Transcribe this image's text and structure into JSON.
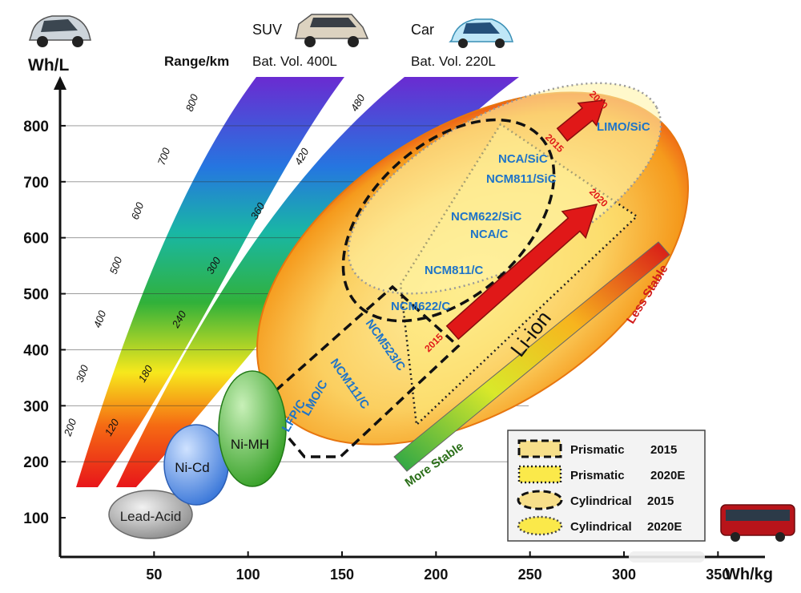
{
  "chart_data": {
    "type": "scatter",
    "title": "",
    "xlabel": "Wh/kg",
    "ylabel": "Wh/L",
    "xlim": [
      0,
      375
    ],
    "ylim": [
      30,
      870
    ],
    "x_ticks": [
      50,
      100,
      150,
      200,
      250,
      300,
      350
    ],
    "y_ticks": [
      100,
      200,
      300,
      400,
      500,
      600,
      700,
      800
    ],
    "regions": [
      {
        "name": "Lead-Acid",
        "cx": 52,
        "cy": 65,
        "rx": 28,
        "ry": 28,
        "color": "#9a9a9a"
      },
      {
        "name": "Ni-Cd",
        "cx": 52,
        "cy": 145,
        "rx": 18,
        "ry": 65,
        "color": "#3b7fe0"
      },
      {
        "name": "Ni-MH",
        "cx": 97,
        "cy": 215,
        "rx": 22,
        "ry": 100,
        "color": "#2fa024"
      },
      {
        "name": "Li-ion",
        "color": "#f39a1a"
      }
    ],
    "chemistries": [
      {
        "label": "LFP/C",
        "x": 117,
        "y": 215
      },
      {
        "label": "LMO/C",
        "x": 127,
        "y": 265
      },
      {
        "label": "NCM111/C",
        "x": 140,
        "y": 320
      },
      {
        "label": "NCM523/C",
        "x": 165,
        "y": 380
      },
      {
        "label": "NCM622/C",
        "x": 187,
        "y": 435
      },
      {
        "label": "NCM811/C",
        "x": 200,
        "y": 500
      },
      {
        "label": "NCA/C",
        "x": 220,
        "y": 570
      },
      {
        "label": "NCM622/SiC",
        "x": 222,
        "y": 600
      },
      {
        "label": "NCM811/SiC",
        "x": 237,
        "y": 665
      },
      {
        "label": "NCA/SiC",
        "x": 235,
        "y": 700
      },
      {
        "label": "LIMO/SiC",
        "x": 310,
        "y": 760
      }
    ],
    "arrows": [
      {
        "from": [
          262,
          420
        ],
        "to": [
          299,
          628
        ],
        "start_label": "2015",
        "end_label": "2020"
      },
      {
        "from": [
          290,
          690
        ],
        "to": [
          300,
          745
        ],
        "start_label": "2015",
        "end_label": "2020"
      }
    ],
    "range_bands": [
      {
        "header": "Range/km",
        "ticks": [
          "200",
          "300",
          "400",
          "500",
          "600",
          "700",
          "800"
        ]
      },
      {
        "header": "SUV Bat. Vol. 400L"
      },
      {
        "header": "Car Bat. Vol. 220L",
        "ticks": [
          "120",
          "180",
          "240",
          "300",
          "360",
          "420",
          "480"
        ]
      }
    ],
    "stability_bar": {
      "low": "More Stable",
      "high": "Less Stable"
    },
    "legend": {
      "position": "bottom-right",
      "entries": [
        {
          "label": "Prismatic",
          "year": "2015"
        },
        {
          "label": "Prismatic",
          "year": "2020E"
        },
        {
          "label": "Cylindrical",
          "year": "2015"
        },
        {
          "label": "Cylindrical",
          "year": "2020E"
        }
      ]
    }
  },
  "headers": {
    "ylabel": "Wh/L",
    "range": "Range/km",
    "suv_title": "SUV",
    "suv_volume": "Bat. Vol. 400L",
    "car_title": "Car",
    "car_volume": "Bat. Vol. 220L",
    "xlabel": "Wh/kg"
  },
  "icons": {
    "top_left": "sedan-car-icon",
    "suv": "suv-icon",
    "car": "hatchback-car-icon",
    "bus": "bus-icon"
  },
  "colors": {
    "liion_outer": "#f6b431",
    "liion_edge": "#ee5a14",
    "liion_core": "#fbe8a3",
    "chem_text": "#1f74c8",
    "arrow": "#e01818",
    "year_text": "#e01818",
    "stable_text": "#2a6e18",
    "unstable_text": "#d11a1a"
  }
}
